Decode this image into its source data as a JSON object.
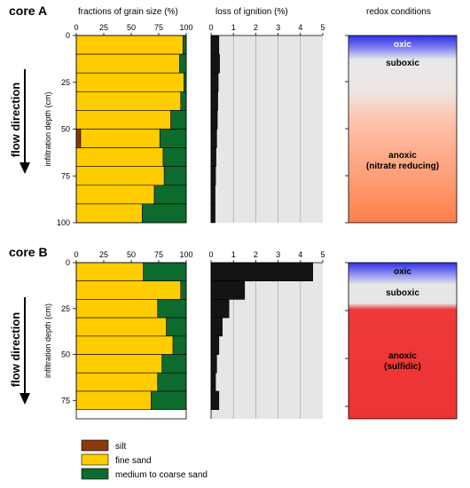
{
  "chart_data": [
    {
      "type": "bar",
      "panel": "grain_size",
      "core": "core A",
      "title": "fractions of grain size (%)",
      "ylabel": "infiltration depth (cm)",
      "flow_label": "flow direction",
      "xlim": [
        0,
        100
      ],
      "xticks": [
        "0",
        "25",
        "50",
        "75",
        "100"
      ],
      "ylim": [
        0,
        100
      ],
      "yticks": [
        "0",
        "25",
        "50",
        "75",
        "100"
      ],
      "depth_intervals": [
        [
          0,
          10
        ],
        [
          10,
          20
        ],
        [
          20,
          30
        ],
        [
          30,
          40
        ],
        [
          40,
          50
        ],
        [
          50,
          60
        ],
        [
          60,
          70
        ],
        [
          70,
          80
        ],
        [
          80,
          90
        ],
        [
          90,
          100
        ]
      ],
      "series": [
        {
          "name": "silt",
          "color": "#8B3A0E",
          "values": [
            0,
            0,
            0,
            0,
            0,
            4,
            0,
            0,
            0,
            0
          ]
        },
        {
          "name": "fine sand",
          "color": "#FFCC00",
          "values": [
            97,
            94,
            98,
            95,
            86,
            72,
            79,
            80,
            71,
            60
          ]
        },
        {
          "name": "medium to coarse sand",
          "color": "#0E6B2E",
          "values": [
            3,
            6,
            2,
            5,
            14,
            24,
            21,
            20,
            29,
            40
          ]
        }
      ]
    },
    {
      "type": "bar",
      "panel": "loss_of_ignition",
      "core": "core A",
      "title": "loss of ignition (%)",
      "xlim": [
        0,
        5
      ],
      "xticks": [
        "0",
        "1",
        "2",
        "3",
        "4",
        "5"
      ],
      "ylim": [
        0,
        100
      ],
      "depth_intervals": [
        [
          0,
          10
        ],
        [
          10,
          20
        ],
        [
          20,
          30
        ],
        [
          30,
          40
        ],
        [
          40,
          50
        ],
        [
          50,
          60
        ],
        [
          60,
          70
        ],
        [
          70,
          80
        ],
        [
          80,
          90
        ],
        [
          90,
          100
        ]
      ],
      "values": [
        0.35,
        0.38,
        0.32,
        0.3,
        0.28,
        0.25,
        0.22,
        0.2,
        0.18,
        0.18
      ],
      "grid": true
    },
    {
      "type": "heatmap",
      "panel": "redox",
      "core": "core A",
      "title": "redox conditions",
      "zones": [
        {
          "label": "oxic",
          "color": "#3333EE"
        },
        {
          "label": "suboxic",
          "color": "#E8E8E8"
        },
        {
          "label": "anoxic\n(nitrate reducing)",
          "color": "#FF8050"
        }
      ]
    },
    {
      "type": "bar",
      "panel": "grain_size",
      "core": "core B",
      "ylabel": "infiltration depth (cm)",
      "flow_label": "flow direction",
      "xlim": [
        0,
        100
      ],
      "xticks": [
        "0",
        "25",
        "50",
        "75",
        "100"
      ],
      "ylim": [
        0,
        85
      ],
      "yticks": [
        "0",
        "25",
        "50",
        "75"
      ],
      "depth_intervals": [
        [
          0,
          10
        ],
        [
          10,
          20
        ],
        [
          20,
          30
        ],
        [
          30,
          40
        ],
        [
          40,
          50
        ],
        [
          50,
          60
        ],
        [
          60,
          70
        ],
        [
          70,
          80
        ]
      ],
      "series": [
        {
          "name": "silt",
          "color": "#8B3A0E",
          "values": [
            0,
            0,
            0,
            0,
            0,
            0,
            0,
            0
          ]
        },
        {
          "name": "fine sand",
          "color": "#FFCC00",
          "values": [
            61,
            95,
            74,
            82,
            88,
            78,
            74,
            68
          ]
        },
        {
          "name": "medium to coarse sand",
          "color": "#0E6B2E",
          "values": [
            39,
            5,
            26,
            18,
            12,
            22,
            26,
            32
          ]
        }
      ]
    },
    {
      "type": "bar",
      "panel": "loss_of_ignition",
      "core": "core B",
      "xlim": [
        0,
        5
      ],
      "xticks": [
        "0",
        "1",
        "2",
        "3",
        "4",
        "5"
      ],
      "ylim": [
        0,
        85
      ],
      "depth_intervals": [
        [
          0,
          10
        ],
        [
          10,
          20
        ],
        [
          20,
          30
        ],
        [
          30,
          40
        ],
        [
          40,
          50
        ],
        [
          50,
          60
        ],
        [
          60,
          70
        ],
        [
          70,
          80
        ]
      ],
      "values": [
        4.55,
        1.5,
        0.8,
        0.5,
        0.35,
        0.25,
        0.2,
        0.35
      ],
      "grid": true
    },
    {
      "type": "heatmap",
      "panel": "redox",
      "core": "core B",
      "zones": [
        {
          "label": "oxic",
          "color": "#3333EE"
        },
        {
          "label": "suboxic",
          "color": "#E6E6E6"
        },
        {
          "label": "anoxic\n(sulfidic)",
          "color": "#EE3333"
        }
      ]
    }
  ],
  "legend": {
    "entries": [
      {
        "label": "silt",
        "color": "#8B3A0E"
      },
      {
        "label": "fine sand",
        "color": "#FFCC00"
      },
      {
        "label": "medium to coarse sand",
        "color": "#0E6B2E"
      }
    ]
  }
}
